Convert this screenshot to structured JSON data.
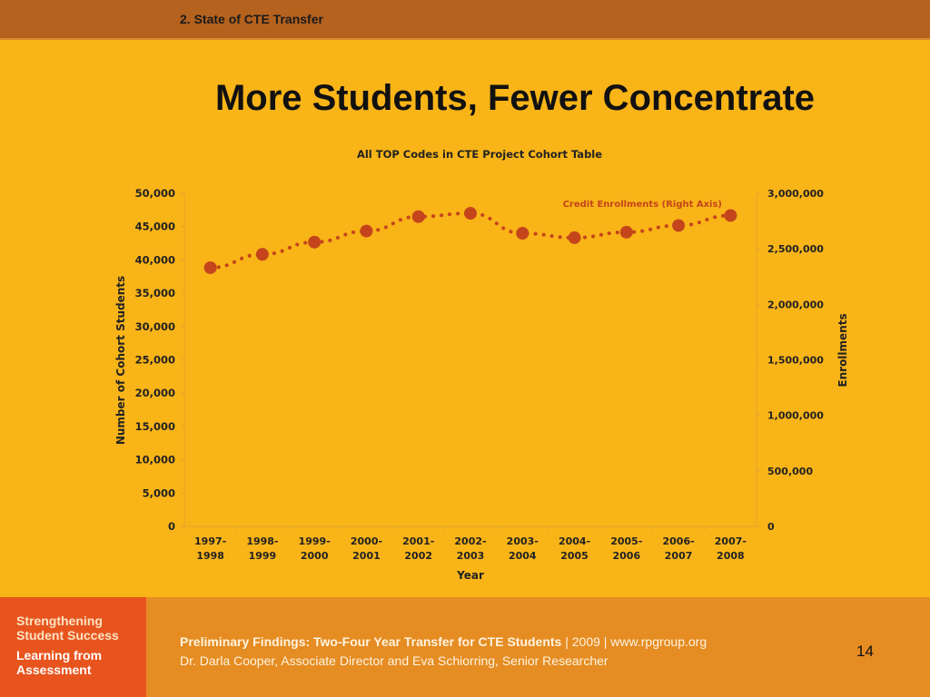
{
  "header": {
    "section": "2. State of CTE Transfer"
  },
  "slide": {
    "title": "More Students, Fewer Concentrate"
  },
  "chart_data": {
    "type": "line",
    "title": "All TOP Codes in CTE Project Cohort Table",
    "xlabel": "Year",
    "ylabel": "Number of Cohort Students",
    "y2label": "Enrollments",
    "categories": [
      [
        "1997-",
        "1998"
      ],
      [
        "1998-",
        "1999"
      ],
      [
        "1999-",
        "2000"
      ],
      [
        "2000-",
        "2001"
      ],
      [
        "2001-",
        "2002"
      ],
      [
        "2002-",
        "2003"
      ],
      [
        "2003-",
        "2004"
      ],
      [
        "2004-",
        "2005"
      ],
      [
        "2005-",
        "2006"
      ],
      [
        "2006-",
        "2007"
      ],
      [
        "2007-",
        "2008"
      ]
    ],
    "ylim": [
      0,
      50000
    ],
    "y2lim": [
      0,
      3000000
    ],
    "yticks": [
      "0",
      "5,000",
      "10,000",
      "15,000",
      "20,000",
      "25,000",
      "30,000",
      "35,000",
      "40,000",
      "45,000",
      "50,000"
    ],
    "y2ticks": [
      "0",
      "500,000",
      "1,000,000",
      "1,500,000",
      "2,000,000",
      "2,500,000",
      "3,000,000"
    ],
    "grid": false,
    "series": [
      {
        "name": "Credit Enrollments (Right Axis)",
        "axis": "right",
        "style": "dotted-with-markers",
        "color": "#c4451b",
        "values": [
          2330000,
          2450000,
          2560000,
          2660000,
          2790000,
          2820000,
          2640000,
          2600000,
          2650000,
          2710000,
          2800000
        ]
      }
    ]
  },
  "footer": {
    "logo_lines": [
      "Strengthening",
      "Student Success",
      "Learning from",
      "Assessment"
    ],
    "line1": "Preliminary Findings: Two-Four Year Transfer for CTE Students",
    "line1_meta": "  |  2009  |  www.rpgroup.org",
    "line2": "Dr. Darla Cooper, Associate Director and Eva Schiorring, Senior Researcher",
    "page": "14"
  },
  "colors": {
    "background": "#f9b418",
    "top_bar": "#b5621f",
    "footer": "#e58c22",
    "logo_bg": "#e8541e",
    "series": "#c4451b"
  }
}
